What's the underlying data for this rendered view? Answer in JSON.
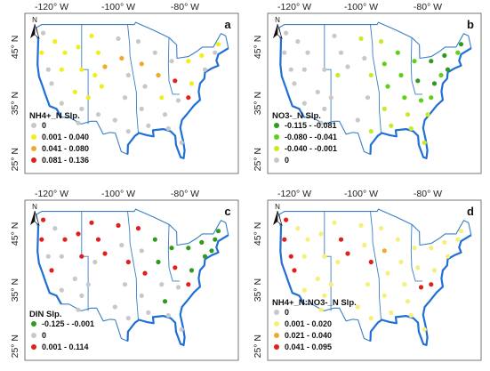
{
  "lon_ticks": [
    "-120° W",
    "-100° W",
    "-80° W"
  ],
  "lat_ticks": [
    "45° N",
    "35° N",
    "25° N"
  ],
  "north_label": "N",
  "panels": [
    {
      "label": "a",
      "legend_title": "NH4+_N Slp.",
      "legend": [
        {
          "label": "0",
          "color": "#c8c8c8"
        },
        {
          "label": "0.001 - 0.040",
          "color": "#f2ee1a"
        },
        {
          "label": "0.041 - 0.080",
          "color": "#f0a92a"
        },
        {
          "label": "0.081 - 0.136",
          "color": "#e0201c"
        }
      ],
      "points": [
        {
          "lon": -122.5,
          "lat": 47.5,
          "c": 0
        },
        {
          "lon": -119,
          "lat": 46,
          "c": 1
        },
        {
          "lon": -123,
          "lat": 44,
          "c": 1
        },
        {
          "lon": -116,
          "lat": 44,
          "c": 1
        },
        {
          "lon": -121,
          "lat": 41,
          "c": 0
        },
        {
          "lon": -117,
          "lat": 41,
          "c": 1
        },
        {
          "lon": -120,
          "lat": 38.5,
          "c": 0
        },
        {
          "lon": -117,
          "lat": 35,
          "c": 0
        },
        {
          "lon": -113,
          "lat": 37,
          "c": 1
        },
        {
          "lon": -111,
          "lat": 34,
          "c": 0
        },
        {
          "lon": -112,
          "lat": 31.5,
          "c": 0
        },
        {
          "lon": -109,
          "lat": 36,
          "c": 1
        },
        {
          "lon": -111,
          "lat": 41,
          "c": 1
        },
        {
          "lon": -112,
          "lat": 45,
          "c": 1
        },
        {
          "lon": -108,
          "lat": 47,
          "c": 1
        },
        {
          "lon": -106,
          "lat": 44,
          "c": 1
        },
        {
          "lon": -107,
          "lat": 40,
          "c": 1
        },
        {
          "lon": -105,
          "lat": 38,
          "c": 1
        },
        {
          "lon": -106,
          "lat": 33,
          "c": 0
        },
        {
          "lon": -104,
          "lat": 41.5,
          "c": 2
        },
        {
          "lon": -100,
          "lat": 46.5,
          "c": 0
        },
        {
          "lon": -99,
          "lat": 43,
          "c": 2
        },
        {
          "lon": -97,
          "lat": 40,
          "c": 0
        },
        {
          "lon": -98,
          "lat": 36,
          "c": 0
        },
        {
          "lon": -101,
          "lat": 32,
          "c": 0
        },
        {
          "lon": -97,
          "lat": 30,
          "c": 0
        },
        {
          "lon": -94,
          "lat": 46,
          "c": 0
        },
        {
          "lon": -93,
          "lat": 42,
          "c": 2
        },
        {
          "lon": -92,
          "lat": 38,
          "c": 0
        },
        {
          "lon": -93,
          "lat": 34,
          "c": 0
        },
        {
          "lon": -91,
          "lat": 31,
          "c": 0
        },
        {
          "lon": -89,
          "lat": 44,
          "c": 0
        },
        {
          "lon": -88,
          "lat": 40,
          "c": 2
        },
        {
          "lon": -87,
          "lat": 36,
          "c": 1
        },
        {
          "lon": -86,
          "lat": 33,
          "c": 0
        },
        {
          "lon": -85,
          "lat": 30.5,
          "c": 0
        },
        {
          "lon": -84,
          "lat": 42.5,
          "c": 0
        },
        {
          "lon": -83,
          "lat": 39,
          "c": 3
        },
        {
          "lon": -82,
          "lat": 35.5,
          "c": 0
        },
        {
          "lon": -81,
          "lat": 28,
          "c": 0
        },
        {
          "lon": -79,
          "lat": 42.5,
          "c": 1
        },
        {
          "lon": -78,
          "lat": 38.5,
          "c": 1
        },
        {
          "lon": -79,
          "lat": 36,
          "c": 3
        },
        {
          "lon": -75,
          "lat": 43.5,
          "c": 1
        },
        {
          "lon": -74,
          "lat": 41,
          "c": 0
        },
        {
          "lon": -71,
          "lat": 44,
          "c": 0
        },
        {
          "lon": -70,
          "lat": 45.5,
          "c": 1
        }
      ]
    },
    {
      "label": "b",
      "legend_title": "NO3-_N Slp.",
      "legend": [
        {
          "label": "-0.115 - -0.081",
          "color": "#2e9a1e"
        },
        {
          "label": "-0.080 - -0.041",
          "color": "#5fcf17"
        },
        {
          "label": "-0.040 - -0.001",
          "color": "#c4ec28"
        },
        {
          "label": "0",
          "color": "#c8c8c8"
        }
      ],
      "points": [
        {
          "lon": -122.5,
          "lat": 47.5,
          "c": 3
        },
        {
          "lon": -119,
          "lat": 46,
          "c": 3
        },
        {
          "lon": -123,
          "lat": 44,
          "c": 3
        },
        {
          "lon": -116,
          "lat": 44,
          "c": 3
        },
        {
          "lon": -121,
          "lat": 41,
          "c": 3
        },
        {
          "lon": -117,
          "lat": 41,
          "c": 3
        },
        {
          "lon": -120,
          "lat": 38.5,
          "c": 3
        },
        {
          "lon": -117,
          "lat": 35,
          "c": 3
        },
        {
          "lon": -113,
          "lat": 37,
          "c": 3
        },
        {
          "lon": -111,
          "lat": 34,
          "c": 3
        },
        {
          "lon": -112,
          "lat": 31.5,
          "c": 3
        },
        {
          "lon": -109,
          "lat": 36,
          "c": 3
        },
        {
          "lon": -111,
          "lat": 41,
          "c": 3
        },
        {
          "lon": -108,
          "lat": 47,
          "c": 3
        },
        {
          "lon": -106,
          "lat": 44,
          "c": 3
        },
        {
          "lon": -107,
          "lat": 40,
          "c": 2
        },
        {
          "lon": -104,
          "lat": 41.5,
          "c": 3
        },
        {
          "lon": -100,
          "lat": 46.5,
          "c": 2
        },
        {
          "lon": -99,
          "lat": 43,
          "c": 3
        },
        {
          "lon": -97,
          "lat": 40,
          "c": 2
        },
        {
          "lon": -98,
          "lat": 36,
          "c": 3
        },
        {
          "lon": -101,
          "lat": 32,
          "c": 3
        },
        {
          "lon": -97,
          "lat": 30,
          "c": 2
        },
        {
          "lon": -94,
          "lat": 46,
          "c": 2
        },
        {
          "lon": -93,
          "lat": 42,
          "c": 1
        },
        {
          "lon": -92,
          "lat": 38,
          "c": 1
        },
        {
          "lon": -93,
          "lat": 34,
          "c": 2
        },
        {
          "lon": -91,
          "lat": 31,
          "c": 2
        },
        {
          "lon": -89,
          "lat": 44,
          "c": 1
        },
        {
          "lon": -88,
          "lat": 40,
          "c": 1
        },
        {
          "lon": -87,
          "lat": 36,
          "c": 1
        },
        {
          "lon": -86,
          "lat": 33,
          "c": 2
        },
        {
          "lon": -85,
          "lat": 30.5,
          "c": 2
        },
        {
          "lon": -84,
          "lat": 42.5,
          "c": 1
        },
        {
          "lon": -83,
          "lat": 39,
          "c": 0
        },
        {
          "lon": -82,
          "lat": 35.5,
          "c": 1
        },
        {
          "lon": -81,
          "lat": 28,
          "c": 2
        },
        {
          "lon": -79,
          "lat": 42.5,
          "c": 0
        },
        {
          "lon": -78,
          "lat": 38.5,
          "c": 0
        },
        {
          "lon": -79,
          "lat": 36,
          "c": 1
        },
        {
          "lon": -75,
          "lat": 43.5,
          "c": 0
        },
        {
          "lon": -74,
          "lat": 41,
          "c": 0
        },
        {
          "lon": -71,
          "lat": 44,
          "c": 1
        },
        {
          "lon": -70,
          "lat": 45.5,
          "c": 0
        },
        {
          "lon": -76,
          "lat": 40,
          "c": 1
        },
        {
          "lon": -80,
          "lat": 33,
          "c": 2
        }
      ]
    },
    {
      "label": "c",
      "legend_title": "DIN Slp.",
      "legend": [
        {
          "label": "-0.125 - -0.001",
          "color": "#2e9a1e"
        },
        {
          "label": "0",
          "color": "#c8c8c8"
        },
        {
          "label": "0.001 - 0.114",
          "color": "#e0201c"
        }
      ],
      "points": [
        {
          "lon": -122.5,
          "lat": 47.5,
          "c": 2
        },
        {
          "lon": -119,
          "lat": 46,
          "c": 1
        },
        {
          "lon": -123,
          "lat": 44,
          "c": 2
        },
        {
          "lon": -116,
          "lat": 44,
          "c": 2
        },
        {
          "lon": -121,
          "lat": 41,
          "c": 1
        },
        {
          "lon": -117,
          "lat": 41,
          "c": 1
        },
        {
          "lon": -120,
          "lat": 38.5,
          "c": 2
        },
        {
          "lon": -117,
          "lat": 35,
          "c": 1
        },
        {
          "lon": -113,
          "lat": 37,
          "c": 1
        },
        {
          "lon": -111,
          "lat": 34,
          "c": 1
        },
        {
          "lon": -112,
          "lat": 31.5,
          "c": 1
        },
        {
          "lon": -109,
          "lat": 36,
          "c": 1
        },
        {
          "lon": -111,
          "lat": 41,
          "c": 2
        },
        {
          "lon": -112,
          "lat": 45,
          "c": 2
        },
        {
          "lon": -108,
          "lat": 47,
          "c": 2
        },
        {
          "lon": -106,
          "lat": 44,
          "c": 2
        },
        {
          "lon": -107,
          "lat": 40,
          "c": 1
        },
        {
          "lon": -104,
          "lat": 41.5,
          "c": 2
        },
        {
          "lon": -100,
          "lat": 46.5,
          "c": 2
        },
        {
          "lon": -99,
          "lat": 43,
          "c": 1
        },
        {
          "lon": -97,
          "lat": 40,
          "c": 2
        },
        {
          "lon": -98,
          "lat": 36,
          "c": 1
        },
        {
          "lon": -101,
          "lat": 32,
          "c": 1
        },
        {
          "lon": -97,
          "lat": 30,
          "c": 1
        },
        {
          "lon": -94,
          "lat": 46,
          "c": 2
        },
        {
          "lon": -93,
          "lat": 42,
          "c": 1
        },
        {
          "lon": -92,
          "lat": 38,
          "c": 2
        },
        {
          "lon": -93,
          "lat": 34,
          "c": 1
        },
        {
          "lon": -91,
          "lat": 31,
          "c": 1
        },
        {
          "lon": -89,
          "lat": 44,
          "c": 0
        },
        {
          "lon": -88,
          "lat": 40,
          "c": 0
        },
        {
          "lon": -87,
          "lat": 36,
          "c": 1
        },
        {
          "lon": -86,
          "lat": 33,
          "c": 0
        },
        {
          "lon": -85,
          "lat": 30.5,
          "c": 1
        },
        {
          "lon": -84,
          "lat": 42.5,
          "c": 0
        },
        {
          "lon": -83,
          "lat": 39,
          "c": 2
        },
        {
          "lon": -82,
          "lat": 35.5,
          "c": 1
        },
        {
          "lon": -81,
          "lat": 28,
          "c": 1
        },
        {
          "lon": -79,
          "lat": 42.5,
          "c": 0
        },
        {
          "lon": -78,
          "lat": 38.5,
          "c": 0
        },
        {
          "lon": -79,
          "lat": 36,
          "c": 2
        },
        {
          "lon": -75,
          "lat": 43.5,
          "c": 0
        },
        {
          "lon": -74,
          "lat": 41,
          "c": 0
        },
        {
          "lon": -71,
          "lat": 44,
          "c": 0
        },
        {
          "lon": -70,
          "lat": 45.5,
          "c": 0
        },
        {
          "lon": -72,
          "lat": 42,
          "c": 0
        }
      ]
    },
    {
      "label": "d",
      "legend_title": "NH4+_N:NO3-_N Slp.",
      "legend": [
        {
          "label": "0",
          "color": "#c8c8c8"
        },
        {
          "label": "0.001 - 0.020",
          "color": "#f5f07a"
        },
        {
          "label": "0.021 - 0.040",
          "color": "#f0a92a"
        },
        {
          "label": "0.041 - 0.095",
          "color": "#e0201c"
        }
      ],
      "points": [
        {
          "lon": -122.5,
          "lat": 47.5,
          "c": 3
        },
        {
          "lon": -119,
          "lat": 46,
          "c": 1
        },
        {
          "lon": -123,
          "lat": 44,
          "c": 3
        },
        {
          "lon": -116,
          "lat": 44,
          "c": 1
        },
        {
          "lon": -121,
          "lat": 41,
          "c": 3
        },
        {
          "lon": -117,
          "lat": 41,
          "c": 1
        },
        {
          "lon": -120,
          "lat": 38.5,
          "c": 3
        },
        {
          "lon": -117,
          "lat": 35,
          "c": 1
        },
        {
          "lon": -113,
          "lat": 37,
          "c": 1
        },
        {
          "lon": -111,
          "lat": 34,
          "c": 1
        },
        {
          "lon": -112,
          "lat": 31.5,
          "c": 1
        },
        {
          "lon": -109,
          "lat": 36,
          "c": 1
        },
        {
          "lon": -111,
          "lat": 41,
          "c": 1
        },
        {
          "lon": -112,
          "lat": 45,
          "c": 1
        },
        {
          "lon": -108,
          "lat": 47,
          "c": 1
        },
        {
          "lon": -106,
          "lat": 44,
          "c": 3
        },
        {
          "lon": -107,
          "lat": 40,
          "c": 1
        },
        {
          "lon": -104,
          "lat": 41.5,
          "c": 3
        },
        {
          "lon": -100,
          "lat": 46.5,
          "c": 1
        },
        {
          "lon": -99,
          "lat": 43,
          "c": 1
        },
        {
          "lon": -97,
          "lat": 40,
          "c": 3
        },
        {
          "lon": -98,
          "lat": 36,
          "c": 1
        },
        {
          "lon": -101,
          "lat": 32,
          "c": 1
        },
        {
          "lon": -97,
          "lat": 30,
          "c": 1
        },
        {
          "lon": -94,
          "lat": 46,
          "c": 1
        },
        {
          "lon": -93,
          "lat": 42,
          "c": 2
        },
        {
          "lon": -92,
          "lat": 38,
          "c": 1
        },
        {
          "lon": -93,
          "lat": 34,
          "c": 1
        },
        {
          "lon": -91,
          "lat": 31,
          "c": 1
        },
        {
          "lon": -89,
          "lat": 44,
          "c": 1
        },
        {
          "lon": -88,
          "lat": 40,
          "c": 1
        },
        {
          "lon": -87,
          "lat": 36,
          "c": 1
        },
        {
          "lon": -86,
          "lat": 33,
          "c": 1
        },
        {
          "lon": -85,
          "lat": 30.5,
          "c": 1
        },
        {
          "lon": -84,
          "lat": 42.5,
          "c": 1
        },
        {
          "lon": -83,
          "lat": 39,
          "c": 1
        },
        {
          "lon": -82,
          "lat": 35.5,
          "c": 3
        },
        {
          "lon": -81,
          "lat": 28,
          "c": 1
        },
        {
          "lon": -79,
          "lat": 42.5,
          "c": 1
        },
        {
          "lon": -78,
          "lat": 38.5,
          "c": 1
        },
        {
          "lon": -79,
          "lat": 36,
          "c": 3
        },
        {
          "lon": -75,
          "lat": 43.5,
          "c": 1
        },
        {
          "lon": -74,
          "lat": 41,
          "c": 1
        },
        {
          "lon": -71,
          "lat": 44,
          "c": 1
        },
        {
          "lon": -70,
          "lat": 45.5,
          "c": 1
        }
      ]
    }
  ]
}
